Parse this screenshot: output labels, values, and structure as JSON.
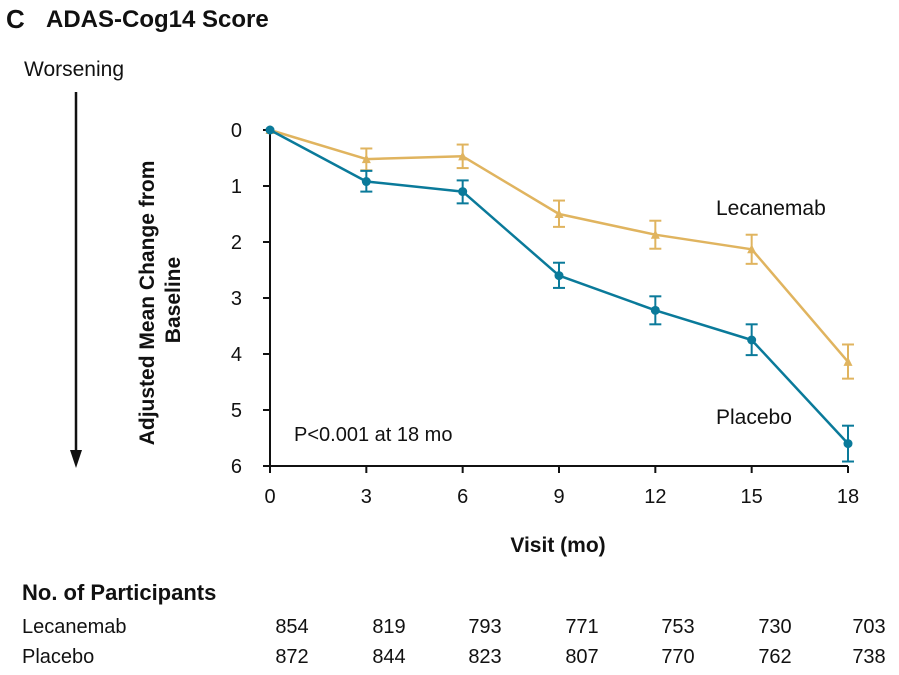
{
  "panel": {
    "letter": "C",
    "title": "ADAS-Cog14 Score"
  },
  "direction_label": "Worsening",
  "colors": {
    "lecanemab": "#e0b45f",
    "placebo": "#0a7a9a",
    "axis": "#111111"
  },
  "chart_data": {
    "type": "line",
    "title": "ADAS-Cog14 Score",
    "xlabel": "Visit (mo)",
    "ylabel_lines": [
      "Adjusted Mean Change from",
      "Baseline"
    ],
    "x": [
      0,
      3,
      6,
      9,
      12,
      15,
      18
    ],
    "xlim": [
      0,
      18
    ],
    "ylim": [
      0,
      6
    ],
    "y_inverted": true,
    "xticks": [
      "0",
      "3",
      "6",
      "9",
      "12",
      "15",
      "18"
    ],
    "yticks": [
      "0",
      "1",
      "2",
      "3",
      "4",
      "5",
      "6"
    ],
    "grid": false,
    "annotation": "P<0.001 at 18 mo",
    "series": [
      {
        "name": "Lecanemab",
        "marker": "triangle",
        "values": [
          0,
          0.52,
          0.47,
          1.5,
          1.87,
          2.13,
          4.14
        ],
        "err_low": [
          0,
          0.33,
          0.26,
          1.26,
          1.62,
          1.87,
          3.83
        ],
        "err_high": [
          0,
          0.72,
          0.68,
          1.73,
          2.12,
          2.39,
          4.44
        ]
      },
      {
        "name": "Placebo",
        "marker": "circle",
        "values": [
          0,
          0.92,
          1.1,
          2.6,
          3.22,
          3.75,
          5.6
        ],
        "err_low": [
          0,
          0.73,
          0.9,
          2.37,
          2.97,
          3.47,
          5.28
        ],
        "err_high": [
          0,
          1.1,
          1.31,
          2.82,
          3.47,
          4.02,
          5.92
        ]
      }
    ]
  },
  "participants": {
    "title": "No. of Participants",
    "rows": [
      {
        "name": "Lecanemab",
        "values": [
          "854",
          "819",
          "793",
          "771",
          "753",
          "730",
          "703"
        ]
      },
      {
        "name": "Placebo",
        "values": [
          "872",
          "844",
          "823",
          "807",
          "770",
          "762",
          "738"
        ]
      }
    ]
  }
}
